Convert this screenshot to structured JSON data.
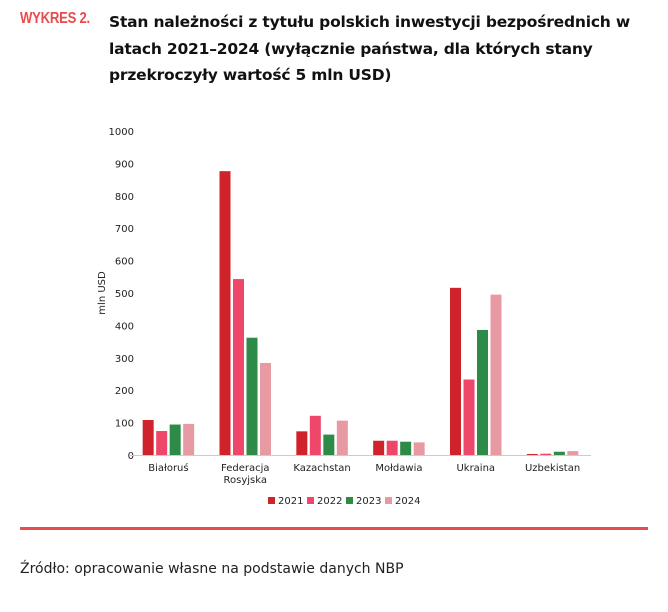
{
  "header": {
    "label": "WYKRES 2.",
    "title": "Stan należności z tytułu polskich inwestycji bezpośrednich w latach 2021–2024 (wyłącznie państwa, dla których stany przekroczyły wartość 5 mln USD)"
  },
  "chart_data": {
    "type": "bar",
    "title": "",
    "xlabel": "",
    "ylabel": "mln USD",
    "ylim": [
      0,
      1000
    ],
    "yticks": [
      0,
      100,
      200,
      300,
      400,
      500,
      600,
      700,
      800,
      900,
      1000
    ],
    "grid": false,
    "legend_position": "bottom",
    "categories": [
      "Białoruś",
      "Federacja Rosyjska",
      "Kazachstan",
      "Mołdawia",
      "Ukraina",
      "Uzbekistan"
    ],
    "series": [
      {
        "name": "2021",
        "color": "#d0222b",
        "values": [
          108,
          876,
          73,
          44,
          516,
          3
        ]
      },
      {
        "name": "2022",
        "color": "#ee4769",
        "values": [
          74,
          543,
          121,
          44,
          233,
          4
        ]
      },
      {
        "name": "2023",
        "color": "#2e8b47",
        "values": [
          94,
          362,
          63,
          41,
          386,
          10
        ]
      },
      {
        "name": "2024",
        "color": "#e89aa3",
        "values": [
          96,
          284,
          106,
          39,
          495,
          12
        ]
      }
    ]
  },
  "footer": {
    "source": "Źródło: opracowanie własne na podstawie danych NBP"
  },
  "colors": {
    "accent": "#e84c4c"
  }
}
